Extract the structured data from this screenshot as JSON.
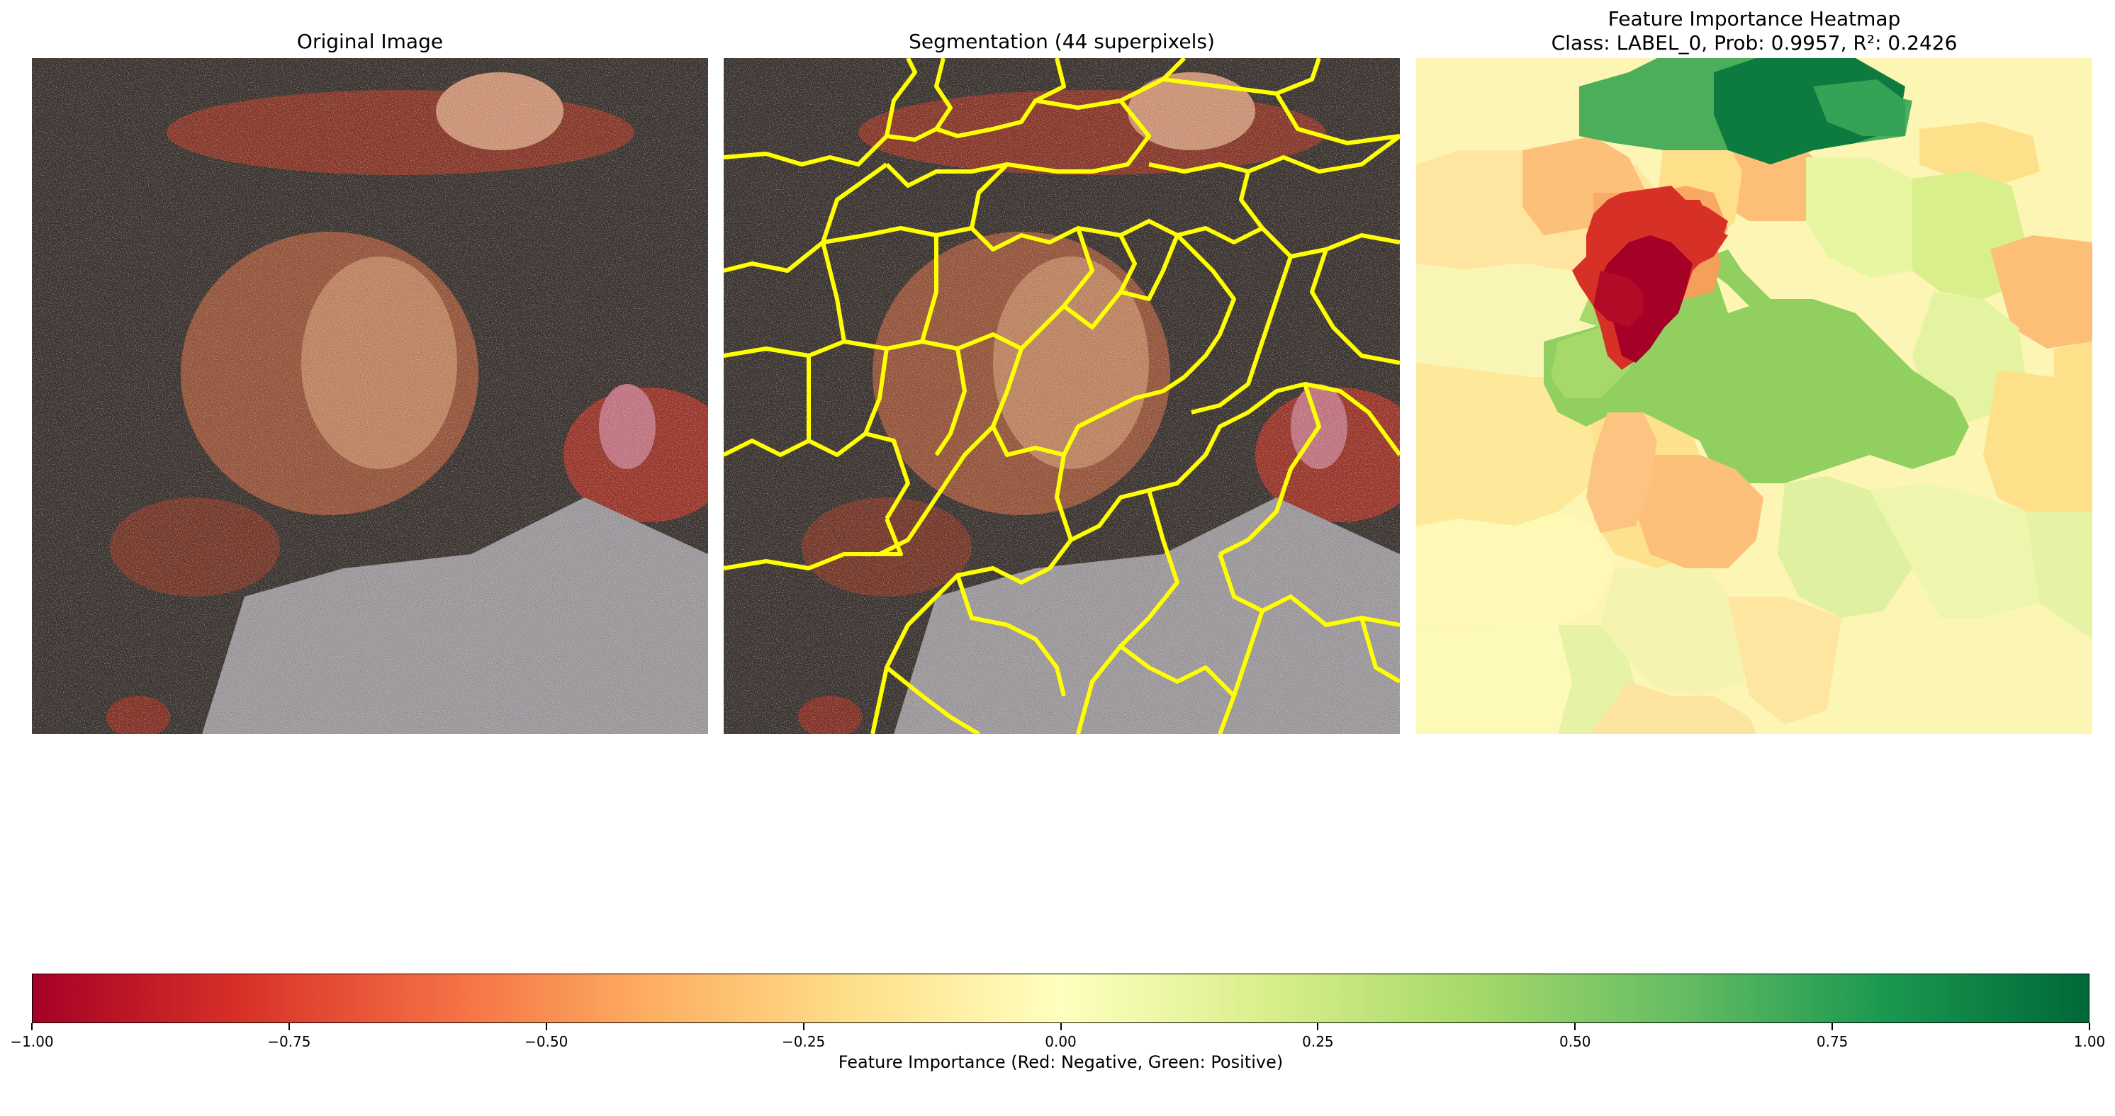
{
  "panels": {
    "original": {
      "title": "Original Image"
    },
    "segmentation": {
      "title": "Segmentation (44 superpixels)",
      "boundary_color": "#ffff00"
    },
    "heatmap": {
      "title_line1": "Feature Importance Heatmap",
      "title_line2": "Class: LABEL_0, Prob: 0.9957, R²: 0.2426"
    }
  },
  "chart_data": {
    "type": "heatmap",
    "colormap": "RdYlGn",
    "colorbar": {
      "range": [
        -1.0,
        1.0
      ],
      "orientation": "horizontal",
      "ticks": [
        "−1.00",
        "−0.75",
        "−0.50",
        "−0.25",
        "0.00",
        "0.25",
        "0.50",
        "0.75",
        "1.00"
      ],
      "tick_values": [
        -1.0,
        -0.75,
        -0.5,
        -0.25,
        0.0,
        0.25,
        0.5,
        0.75,
        1.0
      ],
      "label": "Feature Importance (Red: Negative, Green: Positive)",
      "stops": [
        {
          "v": -1.0,
          "c": "#a50026"
        },
        {
          "v": -0.8,
          "c": "#d73027"
        },
        {
          "v": -0.6,
          "c": "#f46d43"
        },
        {
          "v": -0.4,
          "c": "#fdae61"
        },
        {
          "v": -0.2,
          "c": "#fee08b"
        },
        {
          "v": 0.0,
          "c": "#ffffbf"
        },
        {
          "v": 0.2,
          "c": "#d9ef8b"
        },
        {
          "v": 0.4,
          "c": "#a6d96a"
        },
        {
          "v": 0.6,
          "c": "#66bd63"
        },
        {
          "v": 0.8,
          "c": "#1a9850"
        },
        {
          "v": 1.0,
          "c": "#006837"
        }
      ]
    }
  }
}
